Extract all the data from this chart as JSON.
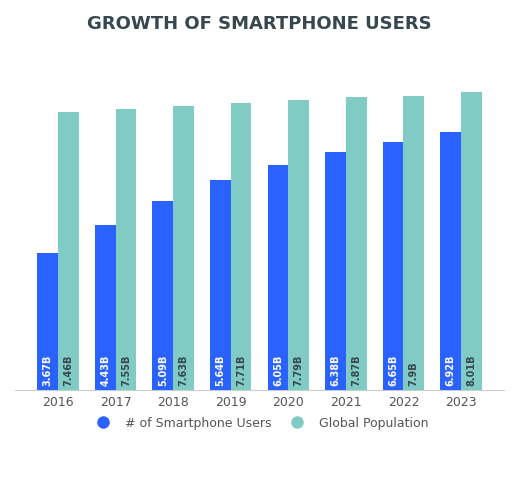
{
  "title": "GROWTH OF SMARTPHONE USERS",
  "years": [
    "2016",
    "2017",
    "2018",
    "2019",
    "2020",
    "2021",
    "2022",
    "2023"
  ],
  "smartphone_users": [
    3.67,
    4.43,
    5.09,
    5.64,
    6.05,
    6.38,
    6.65,
    6.92
  ],
  "global_population": [
    7.46,
    7.55,
    7.63,
    7.71,
    7.79,
    7.87,
    7.9,
    8.01
  ],
  "smartphone_labels": [
    "3.67B",
    "4.43B",
    "5.09B",
    "5.64B",
    "6.05B",
    "6.38B",
    "6.65B",
    "6.92B"
  ],
  "population_labels": [
    "7.46B",
    "7.55B",
    "7.63B",
    "7.71B",
    "7.79B",
    "7.87B",
    "7.9B",
    "8.01B"
  ],
  "bar_color_smartphone": "#2962FF",
  "bar_color_population": "#80CBC4",
  "ylim": [
    0,
    9.2
  ],
  "bar_width": 0.36,
  "background_color": "#ffffff",
  "legend_smartphone": "# of Smartphone Users",
  "legend_population": "Global Population",
  "title_fontsize": 13,
  "title_color": "#37474F",
  "label_fontsize": 7.0,
  "axis_label_fontsize": 8.5,
  "tick_fontsize": 9,
  "bottom_spine_color": "#cccccc"
}
